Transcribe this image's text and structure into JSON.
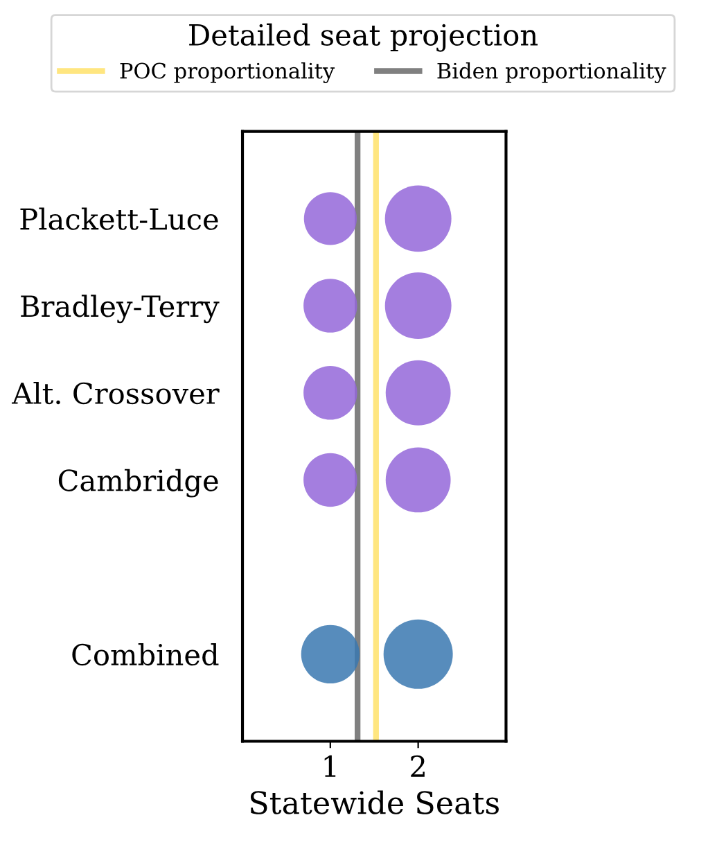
{
  "chart_data": {
    "type": "bubble",
    "orientation": "horizontal",
    "categories": [
      "Plackett-Luce",
      "Bradley-Terry",
      "Alt. Crossover",
      "Cambridge",
      null,
      "Combined"
    ],
    "series": [
      {
        "values": [
          1,
          1,
          1,
          1,
          null,
          1
        ],
        "sizes": [
          0.58,
          0.6,
          0.6,
          0.6,
          null,
          0.71
        ],
        "colors": [
          "#9467d9",
          "#9467d9",
          "#9467d9",
          "#9467d9",
          "#9467d9",
          "#3a78b0"
        ]
      },
      {
        "values": [
          2,
          2,
          2,
          2,
          null,
          2
        ],
        "sizes": [
          0.92,
          0.92,
          0.88,
          0.88,
          null,
          1
        ],
        "colors": [
          "#9467d9",
          "#9467d9",
          "#9467d9",
          "#9467d9",
          "#9467d9",
          "#3a78b0"
        ]
      }
    ],
    "xlim": [
      0,
      3
    ],
    "xticks": [
      1,
      2
    ],
    "xlabel": "Statewide Seats",
    "ref_lines": [
      {
        "axis": "x",
        "value": 1.52,
        "label": "POC proportionality",
        "color": "#ffe680"
      },
      {
        "axis": "x",
        "value": 1.31,
        "label": "Biden proportionality",
        "color": "#808080"
      }
    ],
    "legend_title": "Detailed seat projection",
    "legend": "top",
    "grid": false
  }
}
